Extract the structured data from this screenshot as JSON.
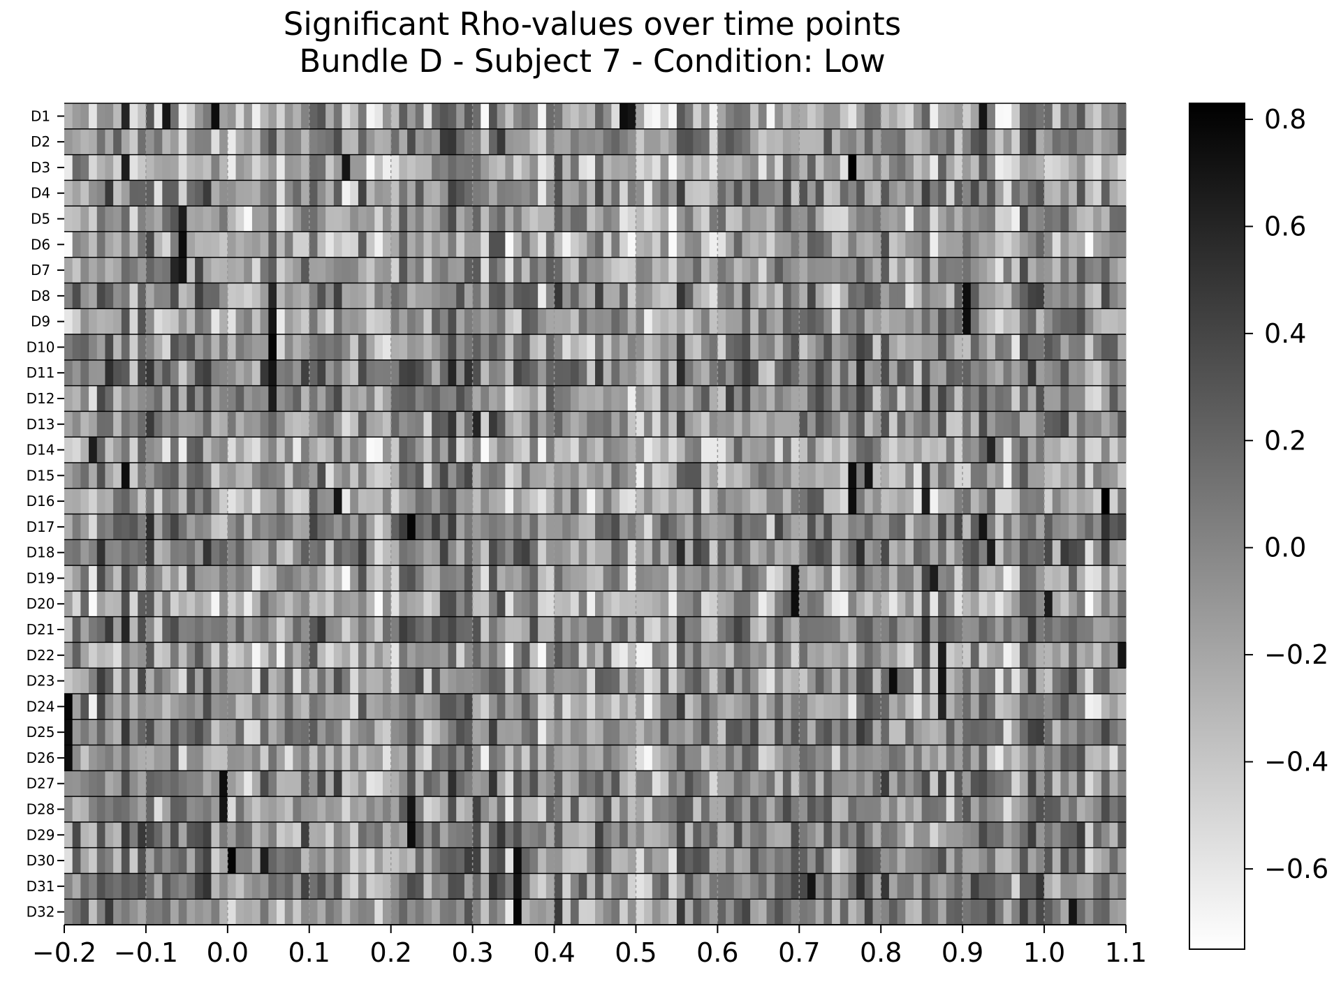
{
  "chart_data": {
    "type": "heatmap",
    "title": [
      "Significant Rho-values over time points",
      "Bundle D - Subject 7 - Condition: Low"
    ],
    "xlabel": "",
    "ylabel": "",
    "xlim": [
      -0.2,
      1.1
    ],
    "x_ticks": [
      -0.2,
      -0.1,
      0.0,
      0.1,
      0.2,
      0.3,
      0.4,
      0.5,
      0.6,
      0.7,
      0.8,
      0.9,
      1.0,
      1.1
    ],
    "x_tick_labels": [
      "−0.2",
      "−0.1",
      "0.0",
      "0.1",
      "0.2",
      "0.3",
      "0.4",
      "0.5",
      "0.6",
      "0.7",
      "0.8",
      "0.9",
      "1.0",
      "1.1"
    ],
    "rows": [
      "D1",
      "D2",
      "D3",
      "D4",
      "D5",
      "D6",
      "D7",
      "D8",
      "D9",
      "D10",
      "D11",
      "D12",
      "D13",
      "D14",
      "D15",
      "D16",
      "D17",
      "D18",
      "D19",
      "D20",
      "D21",
      "D22",
      "D23",
      "D24",
      "D25",
      "D26",
      "D27",
      "D28",
      "D29",
      "D30",
      "D31",
      "D32"
    ],
    "time_step": 0.01,
    "n_time_points": 130,
    "colormap": "gray_r",
    "value_range": [
      -0.75,
      0.83
    ],
    "colorbar": {
      "ticks": [
        -0.6,
        -0.4,
        -0.2,
        0.0,
        0.2,
        0.4,
        0.6,
        0.8
      ],
      "tick_labels": [
        "−0.6",
        "−0.4",
        "−0.2",
        "0.0",
        "0.2",
        "0.4",
        "0.6",
        "0.8"
      ]
    },
    "dashed_vlines": [
      -0.1,
      0.0,
      0.1,
      0.2,
      0.3,
      0.4,
      0.5,
      0.6,
      0.7,
      0.8,
      0.9,
      1.0
    ],
    "row_separators": true,
    "highlight_cells": [
      {
        "row": "D1",
        "t": -0.13,
        "v": 0.6
      },
      {
        "row": "D1",
        "t": -0.08,
        "v": 0.7
      },
      {
        "row": "D1",
        "t": -0.02,
        "v": 0.75
      },
      {
        "row": "D1",
        "t": 0.48,
        "v": 0.75
      },
      {
        "row": "D1",
        "t": 0.49,
        "v": 0.7
      },
      {
        "row": "D1",
        "t": 0.92,
        "v": 0.7
      },
      {
        "row": "D3",
        "t": -0.13,
        "v": 0.65
      },
      {
        "row": "D3",
        "t": 0.14,
        "v": 0.7
      },
      {
        "row": "D3",
        "t": 0.76,
        "v": 0.83
      },
      {
        "row": "D5",
        "t": -0.06,
        "v": 0.65
      },
      {
        "row": "D6",
        "t": -0.06,
        "v": 0.75
      },
      {
        "row": "D7",
        "t": -0.06,
        "v": 0.7
      },
      {
        "row": "D7",
        "t": -0.07,
        "v": 0.6
      },
      {
        "row": "D8",
        "t": 0.05,
        "v": 0.6
      },
      {
        "row": "D8",
        "t": 0.9,
        "v": 0.75
      },
      {
        "row": "D9",
        "t": 0.05,
        "v": 0.7
      },
      {
        "row": "D9",
        "t": 0.9,
        "v": 0.75
      },
      {
        "row": "D10",
        "t": 0.05,
        "v": 0.8
      },
      {
        "row": "D11",
        "t": 0.05,
        "v": 0.7
      },
      {
        "row": "D12",
        "t": 0.05,
        "v": 0.65
      },
      {
        "row": "D13",
        "t": 0.3,
        "v": 0.6
      },
      {
        "row": "D14",
        "t": -0.17,
        "v": 0.65
      },
      {
        "row": "D14",
        "t": 0.93,
        "v": 0.6
      },
      {
        "row": "D15",
        "t": -0.13,
        "v": 0.75
      },
      {
        "row": "D15",
        "t": 0.76,
        "v": 0.75
      },
      {
        "row": "D15",
        "t": 0.78,
        "v": 0.7
      },
      {
        "row": "D16",
        "t": 0.13,
        "v": 0.7
      },
      {
        "row": "D16",
        "t": 0.76,
        "v": 0.75
      },
      {
        "row": "D16",
        "t": 0.85,
        "v": 0.65
      },
      {
        "row": "D16",
        "t": 1.07,
        "v": 0.83
      },
      {
        "row": "D17",
        "t": 0.22,
        "v": 0.8
      },
      {
        "row": "D17",
        "t": 0.92,
        "v": 0.7
      },
      {
        "row": "D18",
        "t": 0.93,
        "v": 0.65
      },
      {
        "row": "D19",
        "t": 0.69,
        "v": 0.7
      },
      {
        "row": "D19",
        "t": 0.86,
        "v": 0.65
      },
      {
        "row": "D20",
        "t": 0.69,
        "v": 0.75
      },
      {
        "row": "D20",
        "t": 1.0,
        "v": 0.65
      },
      {
        "row": "D21",
        "t": -0.13,
        "v": 0.6
      },
      {
        "row": "D22",
        "t": 0.87,
        "v": 0.65
      },
      {
        "row": "D22",
        "t": 1.09,
        "v": 0.7
      },
      {
        "row": "D23",
        "t": 0.81,
        "v": 0.75
      },
      {
        "row": "D23",
        "t": 0.87,
        "v": 0.7
      },
      {
        "row": "D24",
        "t": -0.2,
        "v": 0.8
      },
      {
        "row": "D24",
        "t": 0.87,
        "v": 0.6
      },
      {
        "row": "D25",
        "t": -0.2,
        "v": 0.75
      },
      {
        "row": "D26",
        "t": -0.2,
        "v": 0.75
      },
      {
        "row": "D27",
        "t": -0.01,
        "v": 0.75
      },
      {
        "row": "D28",
        "t": -0.01,
        "v": 0.7
      },
      {
        "row": "D28",
        "t": 0.22,
        "v": 0.7
      },
      {
        "row": "D29",
        "t": 0.22,
        "v": 0.75
      },
      {
        "row": "D30",
        "t": 0.0,
        "v": 0.8
      },
      {
        "row": "D30",
        "t": 0.35,
        "v": 0.75
      },
      {
        "row": "D30",
        "t": 0.04,
        "v": 0.65
      },
      {
        "row": "D31",
        "t": 0.35,
        "v": 0.7
      },
      {
        "row": "D32",
        "t": 0.35,
        "v": 0.8
      },
      {
        "row": "D32",
        "t": 1.03,
        "v": 0.7
      },
      {
        "row": "D31",
        "t": 0.71,
        "v": 0.7
      }
    ]
  }
}
